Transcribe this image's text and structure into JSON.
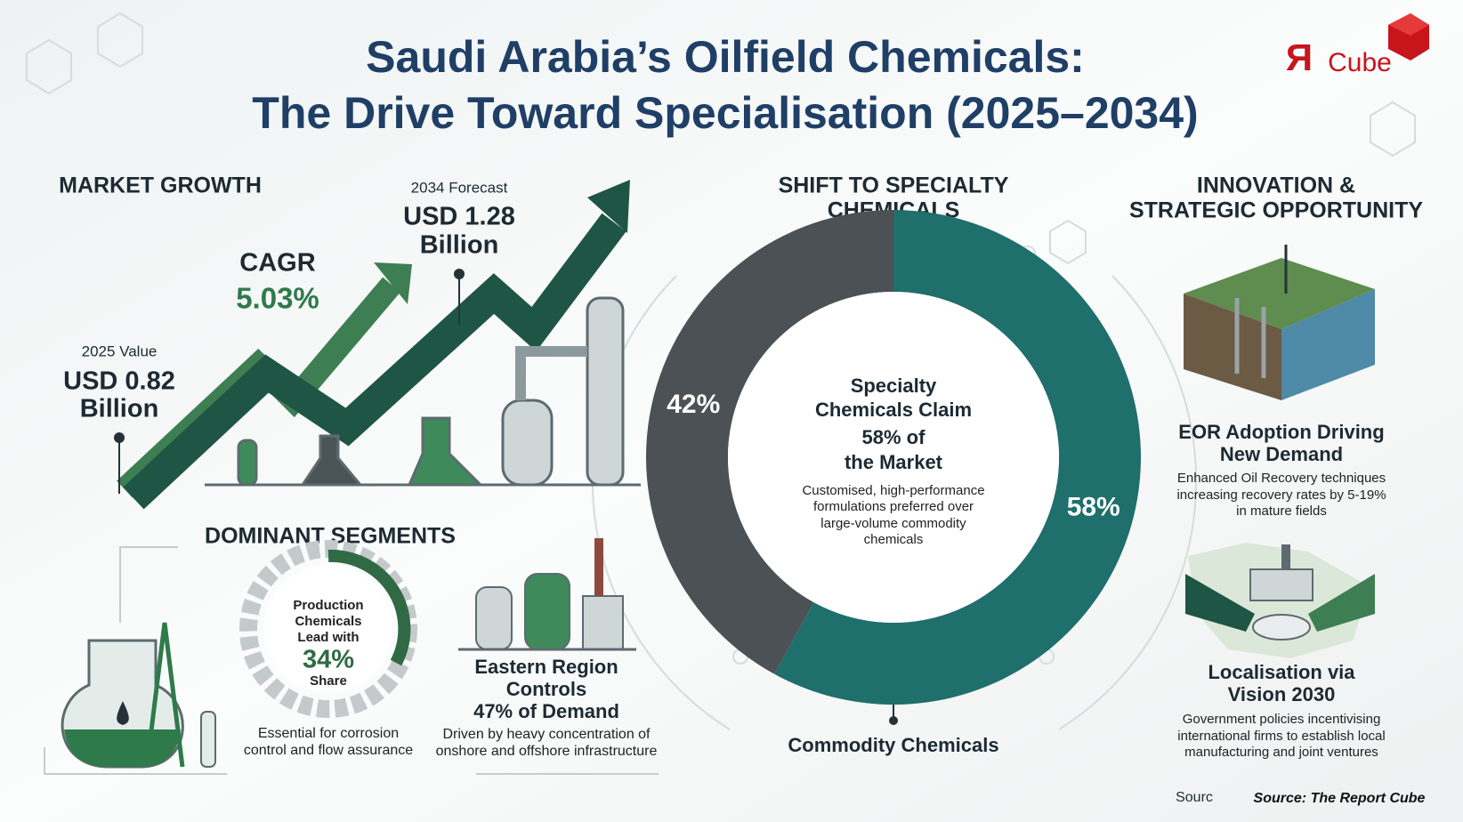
{
  "header": {
    "title_line1": "Saudi Arabia’s Oilfield Chemicals:",
    "title_line2": "The Drive Toward Specialisation (2025–2034)",
    "logo_mark": "Я",
    "logo_text": "Cube"
  },
  "market_growth": {
    "heading": "MARKET GROWTH",
    "start": {
      "label": "2025 Value",
      "value": "USD 0.82",
      "unit": "Billion"
    },
    "cagr": {
      "label": "CAGR",
      "value": "5.03%"
    },
    "forecast": {
      "label": "2034 Forecast",
      "value": "USD 1.28",
      "unit": "Billion"
    }
  },
  "dominant_segments": {
    "heading": "DOMINANT SEGMENTS",
    "production": {
      "lines": [
        "Production",
        "Chemicals",
        "Lead with"
      ],
      "share": "34%",
      "share_word": "Share",
      "note_lines": [
        "Essential for corrosion",
        "control and flow assurance"
      ]
    },
    "eastern": {
      "lines": [
        "Eastern Region",
        "Controls",
        "47% of Demand"
      ],
      "note_lines": [
        "Driven by heavy concentration of",
        "onshore and offshore infrastructure"
      ]
    }
  },
  "specialty_shift": {
    "heading_lines": [
      "SHIFT TO SPECIALTY",
      "CHEMICALS"
    ],
    "segments": [
      {
        "value": 58,
        "label": "58%",
        "color": "#1f6f6c"
      },
      {
        "name": "Commodity Chemicals",
        "value": 42,
        "label": "42%",
        "color": "#4b5154"
      }
    ],
    "center_lines": [
      "Specialty",
      "Chemicals Claim",
      "58% of",
      "the Market"
    ],
    "description_lines": [
      "Customised, high-performance",
      "formulations preferred over",
      "large-volume commodity",
      "chemicals"
    ]
  },
  "innovation": {
    "heading_lines": [
      "INNOVATION &",
      "STRATEGIC OPPORTUNITY"
    ],
    "items": [
      {
        "title_lines": [
          "EOR Adoption Driving",
          "New Demand"
        ],
        "description_lines": [
          "Enhanced Oil Recovery techniques",
          "increasing recovery rates by 5-19%",
          "in mature fields"
        ]
      },
      {
        "title_lines": [
          "Localisation via",
          "Vision 2030"
        ],
        "description_lines": [
          "Government policies incentivising",
          "international firms to establish local",
          "manufacturing and joint ventures"
        ]
      }
    ]
  },
  "footer": {
    "cut_text": "Sourc",
    "source": "Source: The Report Cube"
  }
}
